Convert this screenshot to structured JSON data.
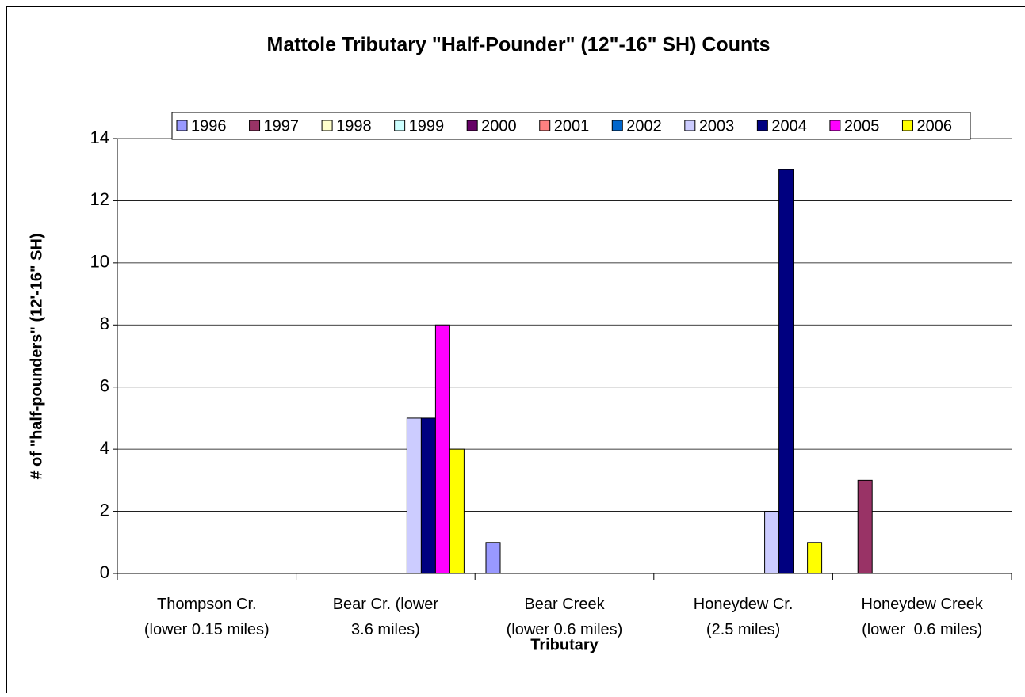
{
  "chart_data": {
    "type": "bar",
    "title": "Mattole Tributary \"Half-Pounder\" (12\"-16\" SH) Counts",
    "x_label": "Tributary",
    "y_label": "# of \"half-pounders\" (12'-16\" SH)",
    "categories": [
      "Thompson Cr.\n(lower 0.15 miles)",
      "Bear Cr. (lower\n3.6 miles)",
      "Bear Creek\n(lower 0.6 miles)",
      "Honeydew Cr.\n(2.5 miles)",
      "Honeydew Creek\n(lower  0.6 miles)"
    ],
    "series": [
      {
        "name": "1996",
        "color": "#9999ff",
        "values": [
          0,
          0,
          1,
          0,
          0
        ]
      },
      {
        "name": "1997",
        "color": "#993366",
        "values": [
          0,
          0,
          0,
          0,
          3
        ]
      },
      {
        "name": "1998",
        "color": "#ffffcc",
        "values": [
          0,
          0,
          0,
          0,
          0
        ]
      },
      {
        "name": "1999",
        "color": "#ccffff",
        "values": [
          0,
          0,
          0,
          0,
          0
        ]
      },
      {
        "name": "2000",
        "color": "#660066",
        "values": [
          0,
          0,
          0,
          0,
          0
        ]
      },
      {
        "name": "2001",
        "color": "#ff8080",
        "values": [
          0,
          0,
          0,
          0,
          0
        ]
      },
      {
        "name": "2002",
        "color": "#0066cc",
        "values": [
          0,
          0,
          0,
          0,
          0
        ]
      },
      {
        "name": "2003",
        "color": "#ccccff",
        "values": [
          0,
          5,
          0,
          2,
          0
        ]
      },
      {
        "name": "2004",
        "color": "#000080",
        "values": [
          0,
          5,
          0,
          13,
          0
        ]
      },
      {
        "name": "2005",
        "color": "#ff00ff",
        "values": [
          0,
          8,
          0,
          0,
          0
        ]
      },
      {
        "name": "2006",
        "color": "#ffff00",
        "values": [
          0,
          4,
          0,
          1,
          0
        ]
      }
    ],
    "ylim": [
      0,
      14
    ],
    "yticks": [
      0,
      2,
      4,
      6,
      8,
      10,
      12,
      14
    ],
    "grid": true,
    "legend": "top"
  }
}
